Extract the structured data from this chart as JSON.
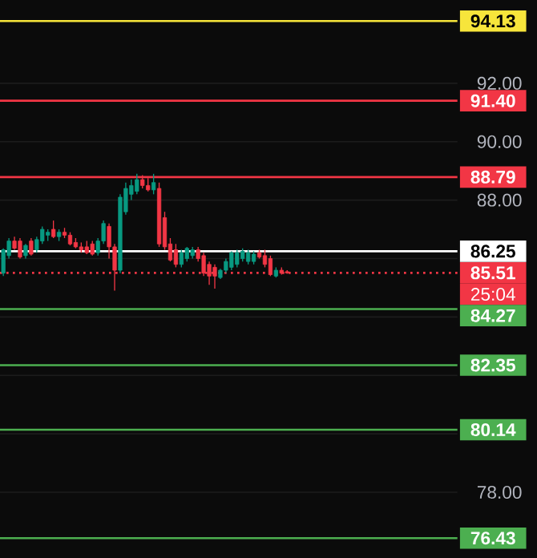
{
  "chart_data": {
    "type": "candlestick",
    "categories": [
      null,
      null,
      null,
      null,
      null,
      null,
      null,
      null,
      null,
      null,
      null,
      null,
      null,
      null,
      null,
      null,
      null,
      null,
      null,
      null,
      null,
      null,
      null,
      null,
      null,
      null,
      null,
      null,
      null,
      null,
      null,
      null,
      null,
      null,
      null,
      null,
      null,
      null,
      null,
      null,
      null,
      null,
      null,
      null,
      null,
      null,
      null,
      null,
      null,
      null,
      null,
      null,
      null,
      null,
      null,
      null,
      null,
      null,
      null,
      null,
      null,
      null,
      null,
      null,
      null,
      null,
      null,
      null,
      null,
      null,
      null,
      null,
      null,
      null,
      null,
      null,
      null,
      null,
      null,
      null,
      null,
      null
    ],
    "ohlc": [
      [
        85.5,
        86.35,
        85.4,
        86.3
      ],
      [
        86.1,
        86.7,
        86.0,
        86.6
      ],
      [
        86.6,
        86.75,
        86.3,
        86.35
      ],
      [
        86.6,
        86.7,
        86.0,
        86.05
      ],
      [
        86.1,
        86.5,
        86.0,
        86.45
      ],
      [
        86.6,
        86.7,
        86.1,
        86.15
      ],
      [
        86.3,
        86.75,
        86.2,
        86.65
      ],
      [
        86.6,
        87.1,
        86.5,
        87.0
      ],
      [
        86.8,
        87.0,
        86.6,
        86.9
      ],
      [
        87.0,
        87.3,
        86.7,
        86.75
      ],
      [
        86.75,
        87.0,
        86.6,
        86.9
      ],
      [
        86.9,
        87.05,
        86.7,
        86.8
      ],
      [
        86.8,
        86.9,
        86.45,
        86.5
      ],
      [
        86.55,
        86.7,
        86.35,
        86.4
      ],
      [
        86.4,
        86.55,
        86.2,
        86.3
      ],
      [
        86.4,
        86.6,
        86.15,
        86.2
      ],
      [
        86.5,
        86.6,
        86.1,
        86.15
      ],
      [
        86.2,
        86.7,
        86.1,
        86.6
      ],
      [
        86.6,
        87.3,
        86.5,
        87.2
      ],
      [
        87.1,
        87.2,
        86.0,
        86.4
      ],
      [
        86.4,
        86.5,
        84.9,
        85.6
      ],
      [
        85.6,
        88.2,
        85.5,
        88.1
      ],
      [
        87.6,
        88.6,
        87.5,
        88.4
      ],
      [
        88.2,
        88.7,
        88.0,
        88.5
      ],
      [
        88.3,
        88.9,
        88.2,
        88.7
      ],
      [
        88.7,
        88.85,
        88.4,
        88.5
      ],
      [
        88.5,
        88.75,
        88.3,
        88.35
      ],
      [
        88.35,
        88.9,
        88.2,
        88.6
      ],
      [
        88.4,
        88.6,
        86.4,
        86.5
      ],
      [
        87.4,
        87.6,
        86.3,
        86.4
      ],
      [
        86.5,
        86.7,
        85.9,
        85.95
      ],
      [
        86.3,
        86.5,
        85.7,
        85.8
      ],
      [
        85.8,
        86.3,
        85.7,
        86.2
      ],
      [
        86.0,
        86.4,
        85.9,
        86.35
      ],
      [
        86.1,
        86.4,
        86.0,
        86.3
      ],
      [
        86.3,
        86.4,
        85.9,
        86.0
      ],
      [
        86.1,
        86.2,
        85.4,
        85.5
      ],
      [
        85.8,
        85.9,
        85.1,
        85.4
      ],
      [
        85.7,
        85.8,
        84.97,
        85.4
      ],
      [
        85.35,
        85.65,
        85.3,
        85.6
      ],
      [
        85.6,
        86.0,
        85.5,
        85.9
      ],
      [
        85.7,
        86.25,
        85.6,
        86.2
      ],
      [
        85.8,
        86.3,
        85.7,
        86.2
      ],
      [
        86.0,
        86.35,
        85.9,
        86.25
      ],
      [
        85.9,
        86.3,
        85.8,
        86.2
      ],
      [
        85.9,
        86.25,
        85.8,
        86.15
      ],
      [
        86.2,
        86.3,
        86.0,
        86.05
      ],
      [
        86.1,
        86.3,
        85.7,
        85.8
      ],
      [
        86.0,
        86.1,
        85.4,
        85.45
      ],
      [
        85.4,
        85.7,
        85.35,
        85.6
      ],
      [
        85.6,
        85.7,
        85.45,
        85.5
      ],
      [
        85.55,
        85.6,
        85.48,
        85.51
      ],
      null,
      null,
      null,
      null,
      null,
      null,
      null,
      null,
      null,
      null,
      null,
      null,
      null,
      null,
      null,
      null,
      null,
      null,
      null,
      null,
      null,
      null,
      null,
      null,
      null,
      null,
      null,
      null,
      null,
      null
    ],
    "ylim": [
      75.75,
      94.85
    ],
    "yticks": [
      {
        "value": 78,
        "label": "78.00"
      },
      {
        "value": 80,
        "label": null
      },
      {
        "value": 82,
        "label": null
      },
      {
        "value": 84,
        "label": null
      },
      {
        "value": 86,
        "label": null
      },
      {
        "value": 88,
        "label": "88.00"
      },
      {
        "value": 90,
        "label": "90.00"
      },
      {
        "value": 92,
        "label": "92.00"
      }
    ],
    "tick_labels": "y",
    "grid": "y",
    "ref_lines": [
      {
        "axis": "y",
        "value": 94.13,
        "label": "94.13",
        "color": "#f7e53b"
      },
      {
        "axis": "y",
        "value": 91.4,
        "label": "91.40",
        "color": "#f23645"
      },
      {
        "axis": "y",
        "value": 88.79,
        "label": "88.79",
        "color": "#f23645"
      },
      {
        "axis": "y",
        "value": 86.25,
        "label": "86.25",
        "color": "#ffffff"
      },
      {
        "axis": "y",
        "value": 85.51,
        "label": "85.51",
        "color": "#f23645",
        "line_style": "dotted"
      },
      {
        "axis": "y",
        "value": 84.27,
        "label": "84.27",
        "color": "#4caf50"
      },
      {
        "axis": "y",
        "value": 82.35,
        "label": "82.35",
        "color": "#4caf50"
      },
      {
        "axis": "y",
        "value": 80.14,
        "label": "80.14",
        "color": "#4caf50"
      },
      {
        "axis": "y",
        "value": 76.43,
        "label": "76.43",
        "color": "#4caf50"
      }
    ],
    "annotations": [
      {
        "text": "25:04",
        "y": 85.51
      }
    ]
  }
}
